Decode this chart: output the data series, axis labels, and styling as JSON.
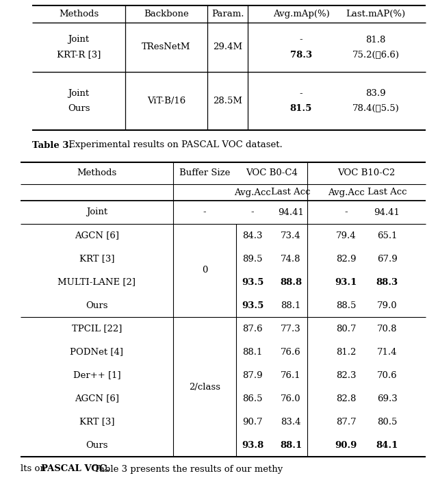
{
  "bg_color": "#ffffff",
  "top_table": {
    "headers": [
      "Methods",
      "Backbone",
      "Param.",
      "Avg.mAp(%)",
      "Last.mAP(%)"
    ],
    "rows": [
      {
        "method_line1": "Joint",
        "method_line2": "KRT-R [3]",
        "backbone": "TResNetM",
        "param": "29.4M",
        "avg_line1": "-",
        "avg_line2": "78.3",
        "last_line1": "81.8",
        "last_line2_normal": "75.2(ℓ6.",
        "last_line2_bold": "6",
        "last_line2_end": ")"
      },
      {
        "method_line1": "Joint",
        "method_line2": "Ours",
        "backbone": "ViT-B/16",
        "param": "28.5M",
        "avg_line1": "-",
        "avg_line2": "81.5",
        "last_line1": "83.9",
        "last_line2_normal": "78.4(ℓ5.",
        "last_line2_bold": "5",
        "last_line2_end": ")"
      }
    ]
  },
  "caption_bold": "Table 3.",
  "caption_rest": " Experimental results on PASCAL VOC dataset.",
  "bottom_table": {
    "groups": [
      {
        "buffer_size": "0",
        "rows": [
          {
            "method": "AGCN [6]",
            "vals": [
              "84.3",
              "73.4",
              "79.4",
              "65.1"
            ],
            "bold": [
              false,
              false,
              false,
              false
            ]
          },
          {
            "method": "KRT [3]",
            "vals": [
              "89.5",
              "74.8",
              "82.9",
              "67.9"
            ],
            "bold": [
              false,
              false,
              false,
              false
            ]
          },
          {
            "method": "MULTI-LANE [2]",
            "vals": [
              "93.5",
              "88.8",
              "93.1",
              "88.3"
            ],
            "bold": [
              true,
              true,
              true,
              true
            ]
          },
          {
            "method": "Ours",
            "vals": [
              "93.5",
              "88.1",
              "88.5",
              "79.0"
            ],
            "bold": [
              true,
              false,
              false,
              false
            ]
          }
        ]
      },
      {
        "buffer_size": "2/class",
        "rows": [
          {
            "method": "TPCIL [22]",
            "vals": [
              "87.6",
              "77.3",
              "80.7",
              "70.8"
            ],
            "bold": [
              false,
              false,
              false,
              false
            ]
          },
          {
            "method": "PODNet [4]",
            "vals": [
              "88.1",
              "76.6",
              "81.2",
              "71.4"
            ],
            "bold": [
              false,
              false,
              false,
              false
            ]
          },
          {
            "method": "Der++ [1]",
            "vals": [
              "87.9",
              "76.1",
              "82.3",
              "70.6"
            ],
            "bold": [
              false,
              false,
              false,
              false
            ]
          },
          {
            "method": "AGCN [6]",
            "vals": [
              "86.5",
              "76.0",
              "82.8",
              "69.3"
            ],
            "bold": [
              false,
              false,
              false,
              false
            ]
          },
          {
            "method": "KRT [3]",
            "vals": [
              "90.7",
              "83.4",
              "87.7",
              "80.5"
            ],
            "bold": [
              false,
              false,
              false,
              false
            ]
          },
          {
            "method": "Ours",
            "vals": [
              "93.8",
              "88.1",
              "90.9",
              "84.1"
            ],
            "bold": [
              true,
              true,
              true,
              true
            ]
          }
        ]
      }
    ]
  },
  "footer_normal1": "lts on ",
  "footer_bold": "PASCAL VOC.",
  "footer_normal2": " Table 3 presents the results of our methy"
}
